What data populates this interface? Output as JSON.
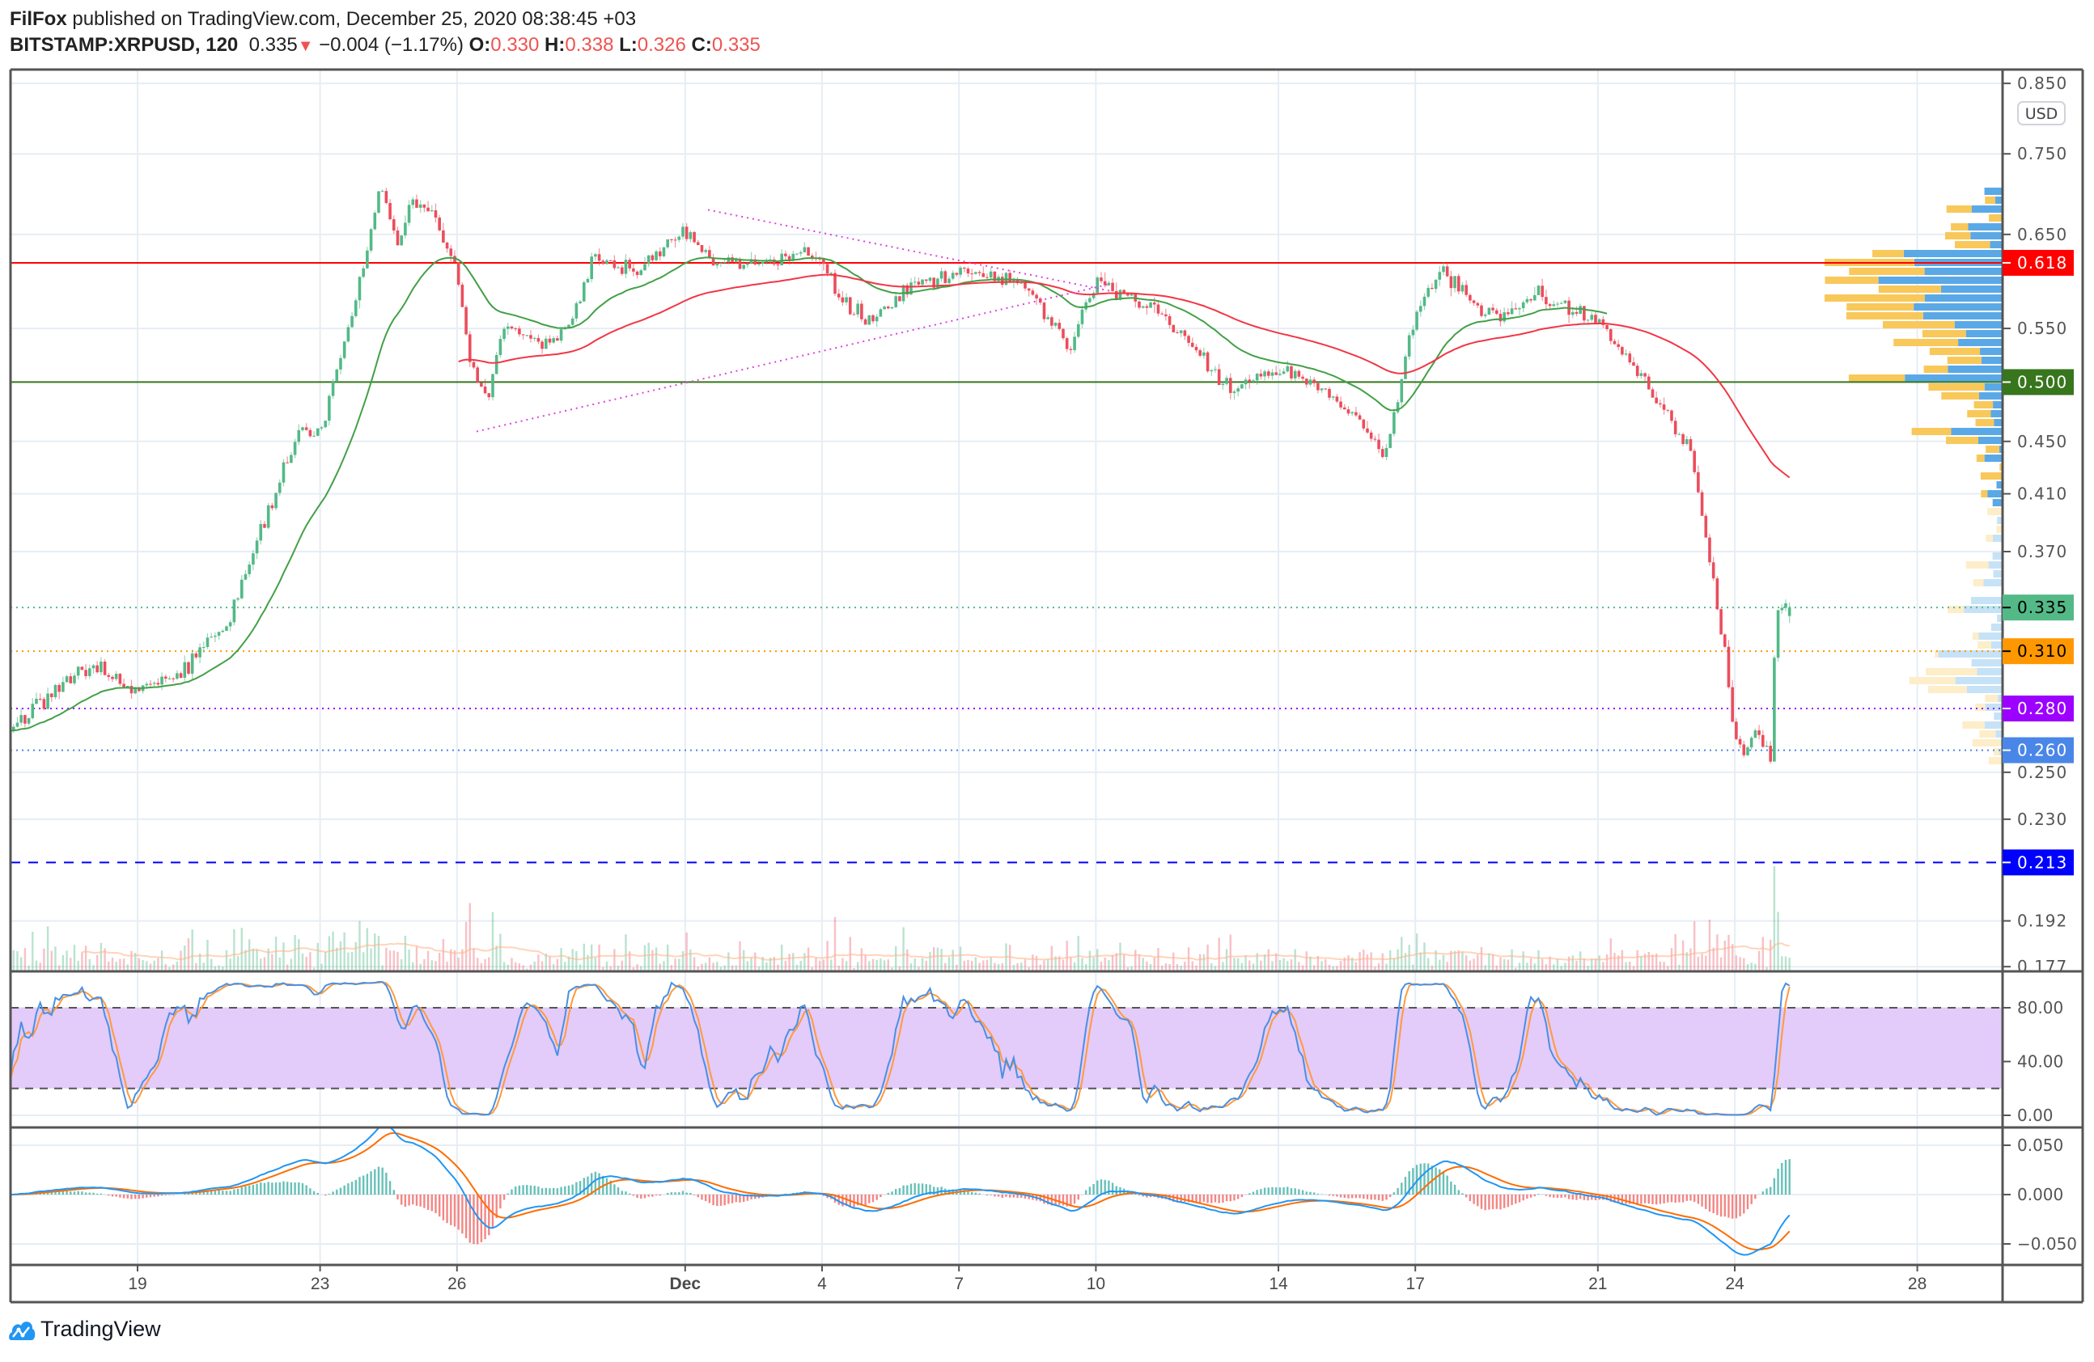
{
  "header": {
    "author": "FilFox",
    "published_text": "published on TradingView.com, December 25, 2020 08:38:45 +03",
    "symbol": "BITSTAMP:XRPUSD, 120",
    "last": "0.335",
    "change": "−0.004 (−1.17%)",
    "o_label": "O:",
    "o": "0.330",
    "h_label": "H:",
    "h": "0.338",
    "l_label": "L:",
    "l": "0.326",
    "c_label": "C:",
    "c": "0.335"
  },
  "currency_badge": "USD",
  "footer": {
    "brand": "TradingView"
  },
  "colors": {
    "up": "#53b987",
    "down": "#eb4d5c",
    "ma_fast": "#43a047",
    "ma_slow": "#f23645",
    "vp_up": "#5aa9e6",
    "vp_down": "#f8c85a",
    "stoch_k": "#4a90e2",
    "stoch_d": "#ff9a3c",
    "stoch_band": "#e3cbfa"
  },
  "chart_data": {
    "type": "candlestick",
    "title": "BITSTAMP:XRPUSD, 120",
    "interval_minutes": 120,
    "scale": "log",
    "ylim": [
      0.175,
      0.86
    ],
    "x_unit": "days from Nov 19 2020",
    "xlim": [
      -3,
      40
    ],
    "x_ticks": [
      {
        "day": 0,
        "label": "19"
      },
      {
        "day": 4,
        "label": "23"
      },
      {
        "day": 7,
        "label": "26"
      },
      {
        "day": 12,
        "label": "Dec",
        "bold": true
      },
      {
        "day": 15,
        "label": "4"
      },
      {
        "day": 18,
        "label": "7"
      },
      {
        "day": 21,
        "label": "10"
      },
      {
        "day": 25,
        "label": "14"
      },
      {
        "day": 28,
        "label": "17"
      },
      {
        "day": 32,
        "label": "21"
      },
      {
        "day": 35,
        "label": "24"
      },
      {
        "day": 39,
        "label": "28"
      }
    ],
    "y_ticks": [
      "0.850",
      "0.750",
      "0.650",
      "0.550",
      "0.450",
      "0.410",
      "0.370",
      "0.250",
      "0.230",
      "0.192",
      "0.177"
    ],
    "price_path": [
      [
        -2.8,
        0.271
      ],
      [
        -1,
        0.303
      ],
      [
        0,
        0.289
      ],
      [
        1,
        0.3
      ],
      [
        2,
        0.327
      ],
      [
        3,
        0.409
      ],
      [
        3.5,
        0.458
      ],
      [
        4,
        0.458
      ],
      [
        4.5,
        0.528
      ],
      [
        5,
        0.625
      ],
      [
        5.3,
        0.707
      ],
      [
        5.7,
        0.64
      ],
      [
        6,
        0.69
      ],
      [
        6.5,
        0.673
      ],
      [
        7,
        0.61
      ],
      [
        7.3,
        0.516
      ],
      [
        7.7,
        0.486
      ],
      [
        8,
        0.554
      ],
      [
        9,
        0.535
      ],
      [
        9.5,
        0.554
      ],
      [
        10,
        0.625
      ],
      [
        11,
        0.61
      ],
      [
        11.5,
        0.632
      ],
      [
        12,
        0.655
      ],
      [
        12.5,
        0.625
      ],
      [
        13,
        0.617
      ],
      [
        14,
        0.617
      ],
      [
        14.5,
        0.632
      ],
      [
        15,
        0.617
      ],
      [
        15.5,
        0.574
      ],
      [
        16,
        0.56
      ],
      [
        17,
        0.595
      ],
      [
        18,
        0.61
      ],
      [
        19,
        0.602
      ],
      [
        19.5,
        0.588
      ],
      [
        20,
        0.56
      ],
      [
        20.4,
        0.528
      ],
      [
        21,
        0.6
      ],
      [
        22,
        0.574
      ],
      [
        23,
        0.541
      ],
      [
        23.5,
        0.516
      ],
      [
        24,
        0.492
      ],
      [
        24.5,
        0.504
      ],
      [
        25,
        0.51
      ],
      [
        26,
        0.492
      ],
      [
        27,
        0.458
      ],
      [
        27.3,
        0.442
      ],
      [
        27.6,
        0.48
      ],
      [
        27.8,
        0.522
      ],
      [
        28,
        0.56
      ],
      [
        28.5,
        0.61
      ],
      [
        29,
        0.595
      ],
      [
        29.5,
        0.56
      ],
      [
        30,
        0.567
      ],
      [
        30.7,
        0.588
      ],
      [
        31,
        0.574
      ],
      [
        32,
        0.56
      ],
      [
        32.5,
        0.528
      ],
      [
        33,
        0.504
      ],
      [
        33.5,
        0.469
      ],
      [
        34,
        0.448
      ],
      [
        34.2,
        0.409
      ],
      [
        34.4,
        0.372
      ],
      [
        34.6,
        0.339
      ],
      [
        34.8,
        0.306
      ],
      [
        35,
        0.266
      ],
      [
        35.2,
        0.259
      ],
      [
        35.5,
        0.27
      ],
      [
        35.8,
        0.256
      ],
      [
        35.9,
        0.331
      ],
      [
        36.1,
        0.343
      ],
      [
        36.2,
        0.335
      ]
    ],
    "last_candle": {
      "open": 0.33,
      "high": 0.338,
      "low": 0.326,
      "close": 0.335
    },
    "moving_averages": [
      {
        "name": "MA fast",
        "period": 30,
        "color": "#43a047",
        "from_day": -2.8,
        "to_day": 32.2
      },
      {
        "name": "MA slow",
        "period": 80,
        "color": "#f23645",
        "from_day": 7.0,
        "to_day": 36.2
      }
    ],
    "horizontal_levels": [
      {
        "price": 0.618,
        "label": "0.618",
        "color": "#ff0000",
        "style": "solid",
        "text_color": "#ffffff"
      },
      {
        "price": 0.5,
        "label": "0.500",
        "color": "#38761d",
        "style": "solid",
        "text_color": "#ffffff"
      },
      {
        "price": 0.335,
        "label": "0.335",
        "color": "#53b987",
        "style": "dotted",
        "text_color": "#000000"
      },
      {
        "price": 0.31,
        "label": "0.310",
        "color": "#ff9800",
        "style": "dotted",
        "text_color": "#000000"
      },
      {
        "price": 0.28,
        "label": "0.280",
        "color": "#9c00ff",
        "style": "dotted",
        "text_color": "#ffffff"
      },
      {
        "price": 0.26,
        "label": "0.260",
        "color": "#4a86e8",
        "style": "dotted",
        "text_color": "#ffffff"
      },
      {
        "price": 0.213,
        "label": "0.213",
        "color": "#0000ff",
        "style": "dashed",
        "text_color": "#ffffff"
      }
    ],
    "trendlines": [
      {
        "name": "triangle-upper",
        "from": [
          12.5,
          0.679
        ],
        "to": [
          21.3,
          0.588
        ],
        "color": "#e040e0"
      },
      {
        "name": "triangle-lower",
        "from": [
          7.43,
          0.458
        ],
        "to": [
          21.3,
          0.595
        ],
        "color": "#e040e0"
      }
    ],
    "stochastic": {
      "k": 14,
      "smooth": 3,
      "d": 3,
      "upper": 80,
      "lower": 20,
      "ylim": [
        0,
        100
      ],
      "ticks": [
        "80.00",
        "40.00",
        "0.00"
      ]
    },
    "macd": {
      "fast": 12,
      "slow": 26,
      "signal": 9,
      "ylim": [
        -0.062,
        0.066
      ],
      "ticks": [
        "0.050",
        "0.000",
        "−0.050"
      ]
    }
  }
}
